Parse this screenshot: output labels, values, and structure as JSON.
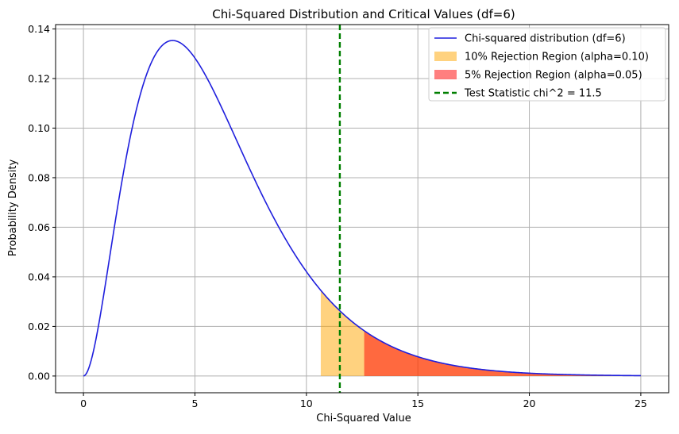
{
  "chart_data": {
    "type": "line",
    "title": "Chi-Squared Distribution and Critical Values (df=6)",
    "xlabel": "Chi-Squared Value",
    "ylabel": "Probability Density",
    "xlim": [
      -1.25,
      26.25
    ],
    "ylim": [
      -0.00675,
      0.14175
    ],
    "x_ticks": [
      0,
      5,
      10,
      15,
      20,
      25
    ],
    "x_tick_labels": [
      "0",
      "5",
      "10",
      "15",
      "20",
      "25"
    ],
    "y_ticks": [
      0.0,
      0.02,
      0.04,
      0.06,
      0.08,
      0.1,
      0.12,
      0.14
    ],
    "y_tick_labels": [
      "0.00",
      "0.02",
      "0.04",
      "0.06",
      "0.08",
      "0.10",
      "0.12",
      "0.14"
    ],
    "grid": true,
    "legend_position": "top-right",
    "df": 6,
    "x_range": [
      0,
      25
    ],
    "series": [
      {
        "name": "Chi-squared distribution (df=6)",
        "kind": "line",
        "color": "#1f1fdd"
      },
      {
        "name": "10% Rejection Region (alpha=0.10)",
        "kind": "fill",
        "from": 10.645,
        "to": 25,
        "color": "#ffa500",
        "opacity": 0.5
      },
      {
        "name": "5% Rejection Region (alpha=0.05)",
        "kind": "fill",
        "from": 12.592,
        "to": 25,
        "color": "#ff0000",
        "opacity": 0.5
      },
      {
        "name": "Test Statistic chi^2 = 11.5",
        "kind": "vline",
        "x": 11.5,
        "color": "#007f00"
      }
    ]
  }
}
